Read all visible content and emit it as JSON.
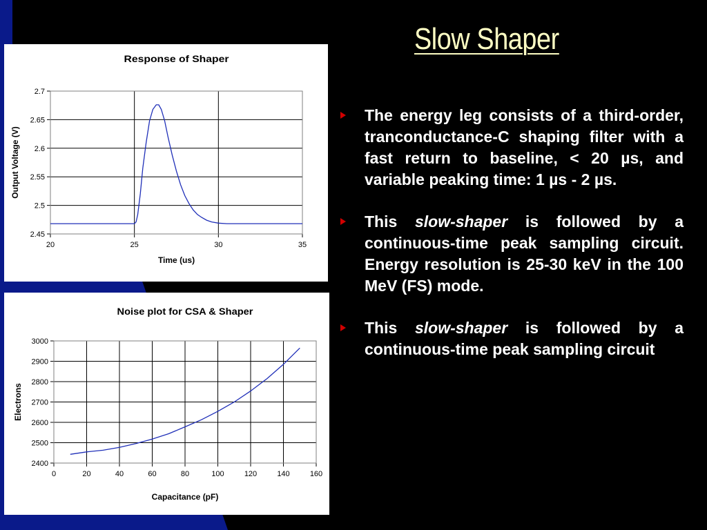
{
  "slide": {
    "title": "Slow Shaper",
    "colors": {
      "background": "#000000",
      "title": "#ffffc4",
      "accent": "#0a1a8a",
      "bullet": "#d00000",
      "text": "#ffffff",
      "series": "#1f2fb8"
    }
  },
  "bullets": [
    {
      "parts": [
        "The energy leg consists of a third-order, tranconductance-C shaping filter with a fast return to baseline, < 20 µs, and variable peaking time: 1 µs - 2 µs."
      ]
    },
    {
      "parts": [
        "This ",
        "slow-shaper",
        " is followed by a continuous-time peak sampling circuit. Energy resolution is 25-30 keV in the 100 MeV (FS) mode."
      ]
    },
    {
      "parts": [
        "This ",
        "slow-shaper",
        " is followed by a continuous-time peak sampling circuit"
      ]
    }
  ],
  "chart_data": [
    {
      "type": "line",
      "title": "Response of Shaper",
      "xlabel": "Time (us)",
      "ylabel": "Output Voltage (V)",
      "xlim": [
        20,
        35
      ],
      "ylim": [
        2.45,
        2.7
      ],
      "xticks": [
        "20",
        "25",
        "30",
        "35"
      ],
      "yticks": [
        "2.45",
        "2.5",
        "2.55",
        "2.6",
        "2.65",
        "2.7"
      ],
      "grid": "major",
      "legend": "none",
      "series": [
        {
          "x": [
            20,
            25,
            25.1,
            25.2,
            25.35,
            25.5,
            25.7,
            25.9,
            26.1,
            26.3,
            26.45,
            26.6,
            26.8,
            27.0,
            27.25,
            27.5,
            27.75,
            28.0,
            28.25,
            28.5,
            28.75,
            29.0,
            29.3,
            29.6,
            30.0,
            30.5,
            31.0,
            32.0,
            35
          ],
          "y": [
            2.468,
            2.468,
            2.471,
            2.484,
            2.52,
            2.565,
            2.61,
            2.648,
            2.668,
            2.676,
            2.676,
            2.668,
            2.648,
            2.62,
            2.588,
            2.56,
            2.536,
            2.517,
            2.503,
            2.492,
            2.484,
            2.479,
            2.474,
            2.471,
            2.469,
            2.468,
            2.468,
            2.468,
            2.468
          ]
        }
      ]
    },
    {
      "type": "line",
      "title": "Noise plot for CSA & Shaper",
      "xlabel": "Capacitance (pF)",
      "ylabel": "Electrons",
      "xlim": [
        0,
        160
      ],
      "ylim": [
        2400,
        3000
      ],
      "xticks": [
        "0",
        "20",
        "40",
        "60",
        "80",
        "100",
        "120",
        "140",
        "160"
      ],
      "yticks": [
        "2400",
        "2500",
        "2600",
        "2700",
        "2800",
        "2900",
        "3000"
      ],
      "grid": "major",
      "legend": "none",
      "series": [
        {
          "x": [
            10,
            20,
            30,
            40,
            50,
            60,
            70,
            80,
            90,
            100,
            110,
            120,
            130,
            140,
            150
          ],
          "y": [
            2443,
            2455,
            2463,
            2477,
            2496,
            2518,
            2544,
            2578,
            2613,
            2654,
            2700,
            2754,
            2815,
            2885,
            2965
          ]
        }
      ]
    }
  ]
}
